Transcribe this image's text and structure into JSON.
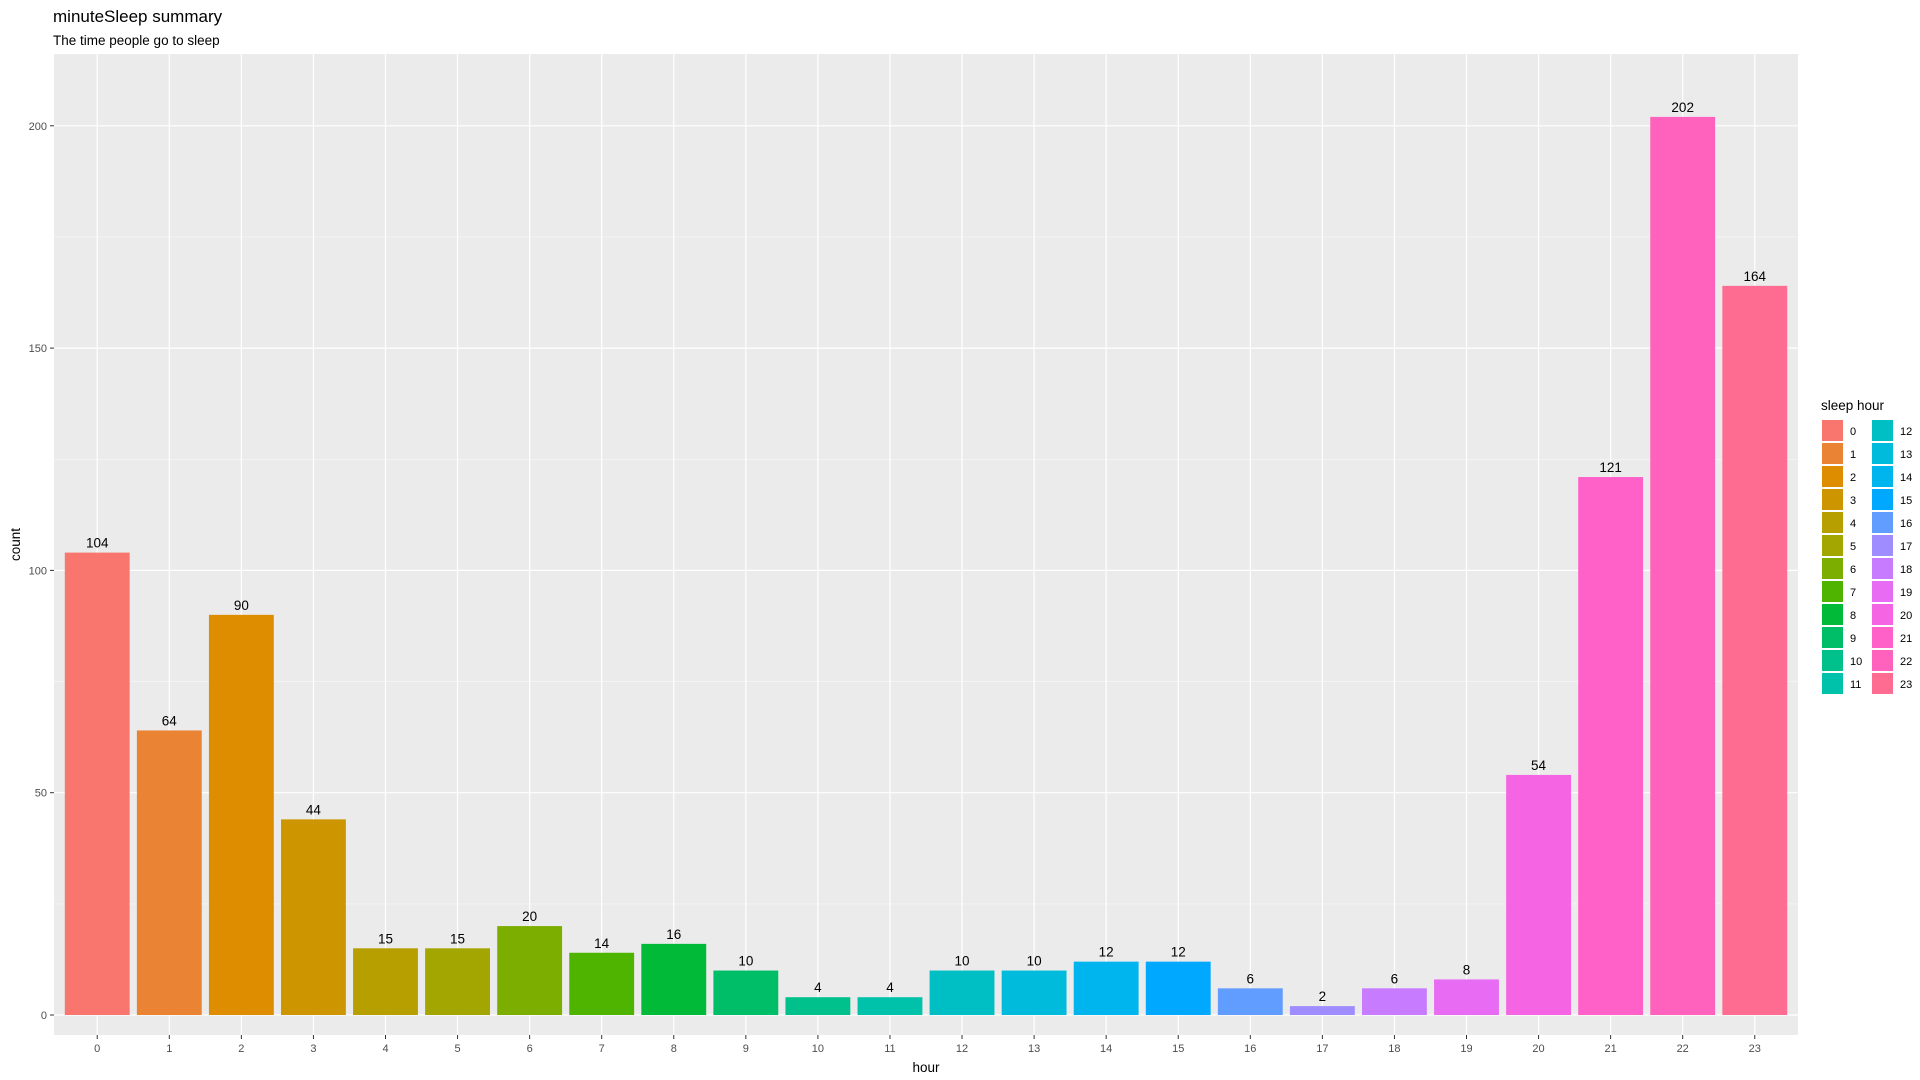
{
  "chart_data": {
    "type": "bar",
    "title": "minuteSleep summary",
    "subtitle": "The time people go to sleep",
    "xlabel": "hour",
    "ylabel": "count",
    "categories": [
      "0",
      "1",
      "2",
      "3",
      "4",
      "5",
      "6",
      "7",
      "8",
      "9",
      "10",
      "11",
      "12",
      "13",
      "14",
      "15",
      "16",
      "17",
      "18",
      "19",
      "20",
      "21",
      "22",
      "23"
    ],
    "values": [
      104,
      64,
      90,
      44,
      15,
      15,
      20,
      14,
      16,
      10,
      4,
      4,
      10,
      10,
      12,
      12,
      6,
      2,
      6,
      8,
      54,
      121,
      202,
      164
    ],
    "colors": [
      "#F8766D",
      "#EB8335",
      "#DE8C00",
      "#CD9600",
      "#B79F00",
      "#A3A500",
      "#7CAE00",
      "#4EB400",
      "#00BA38",
      "#00BE67",
      "#00C08B",
      "#00C1A9",
      "#00BFC4",
      "#00BBDC",
      "#00B5EE",
      "#00A9FF",
      "#619CFF",
      "#9F8CFF",
      "#C77CFF",
      "#E76BF3",
      "#F564E3",
      "#FF61C9",
      "#FF62BC",
      "#FF6C91"
    ],
    "ylim": [
      0,
      213
    ],
    "yticks": [
      0,
      50,
      100,
      150,
      200
    ],
    "grid": true,
    "legend": {
      "title": "sleep hour",
      "position": "right",
      "columns": 2
    }
  }
}
